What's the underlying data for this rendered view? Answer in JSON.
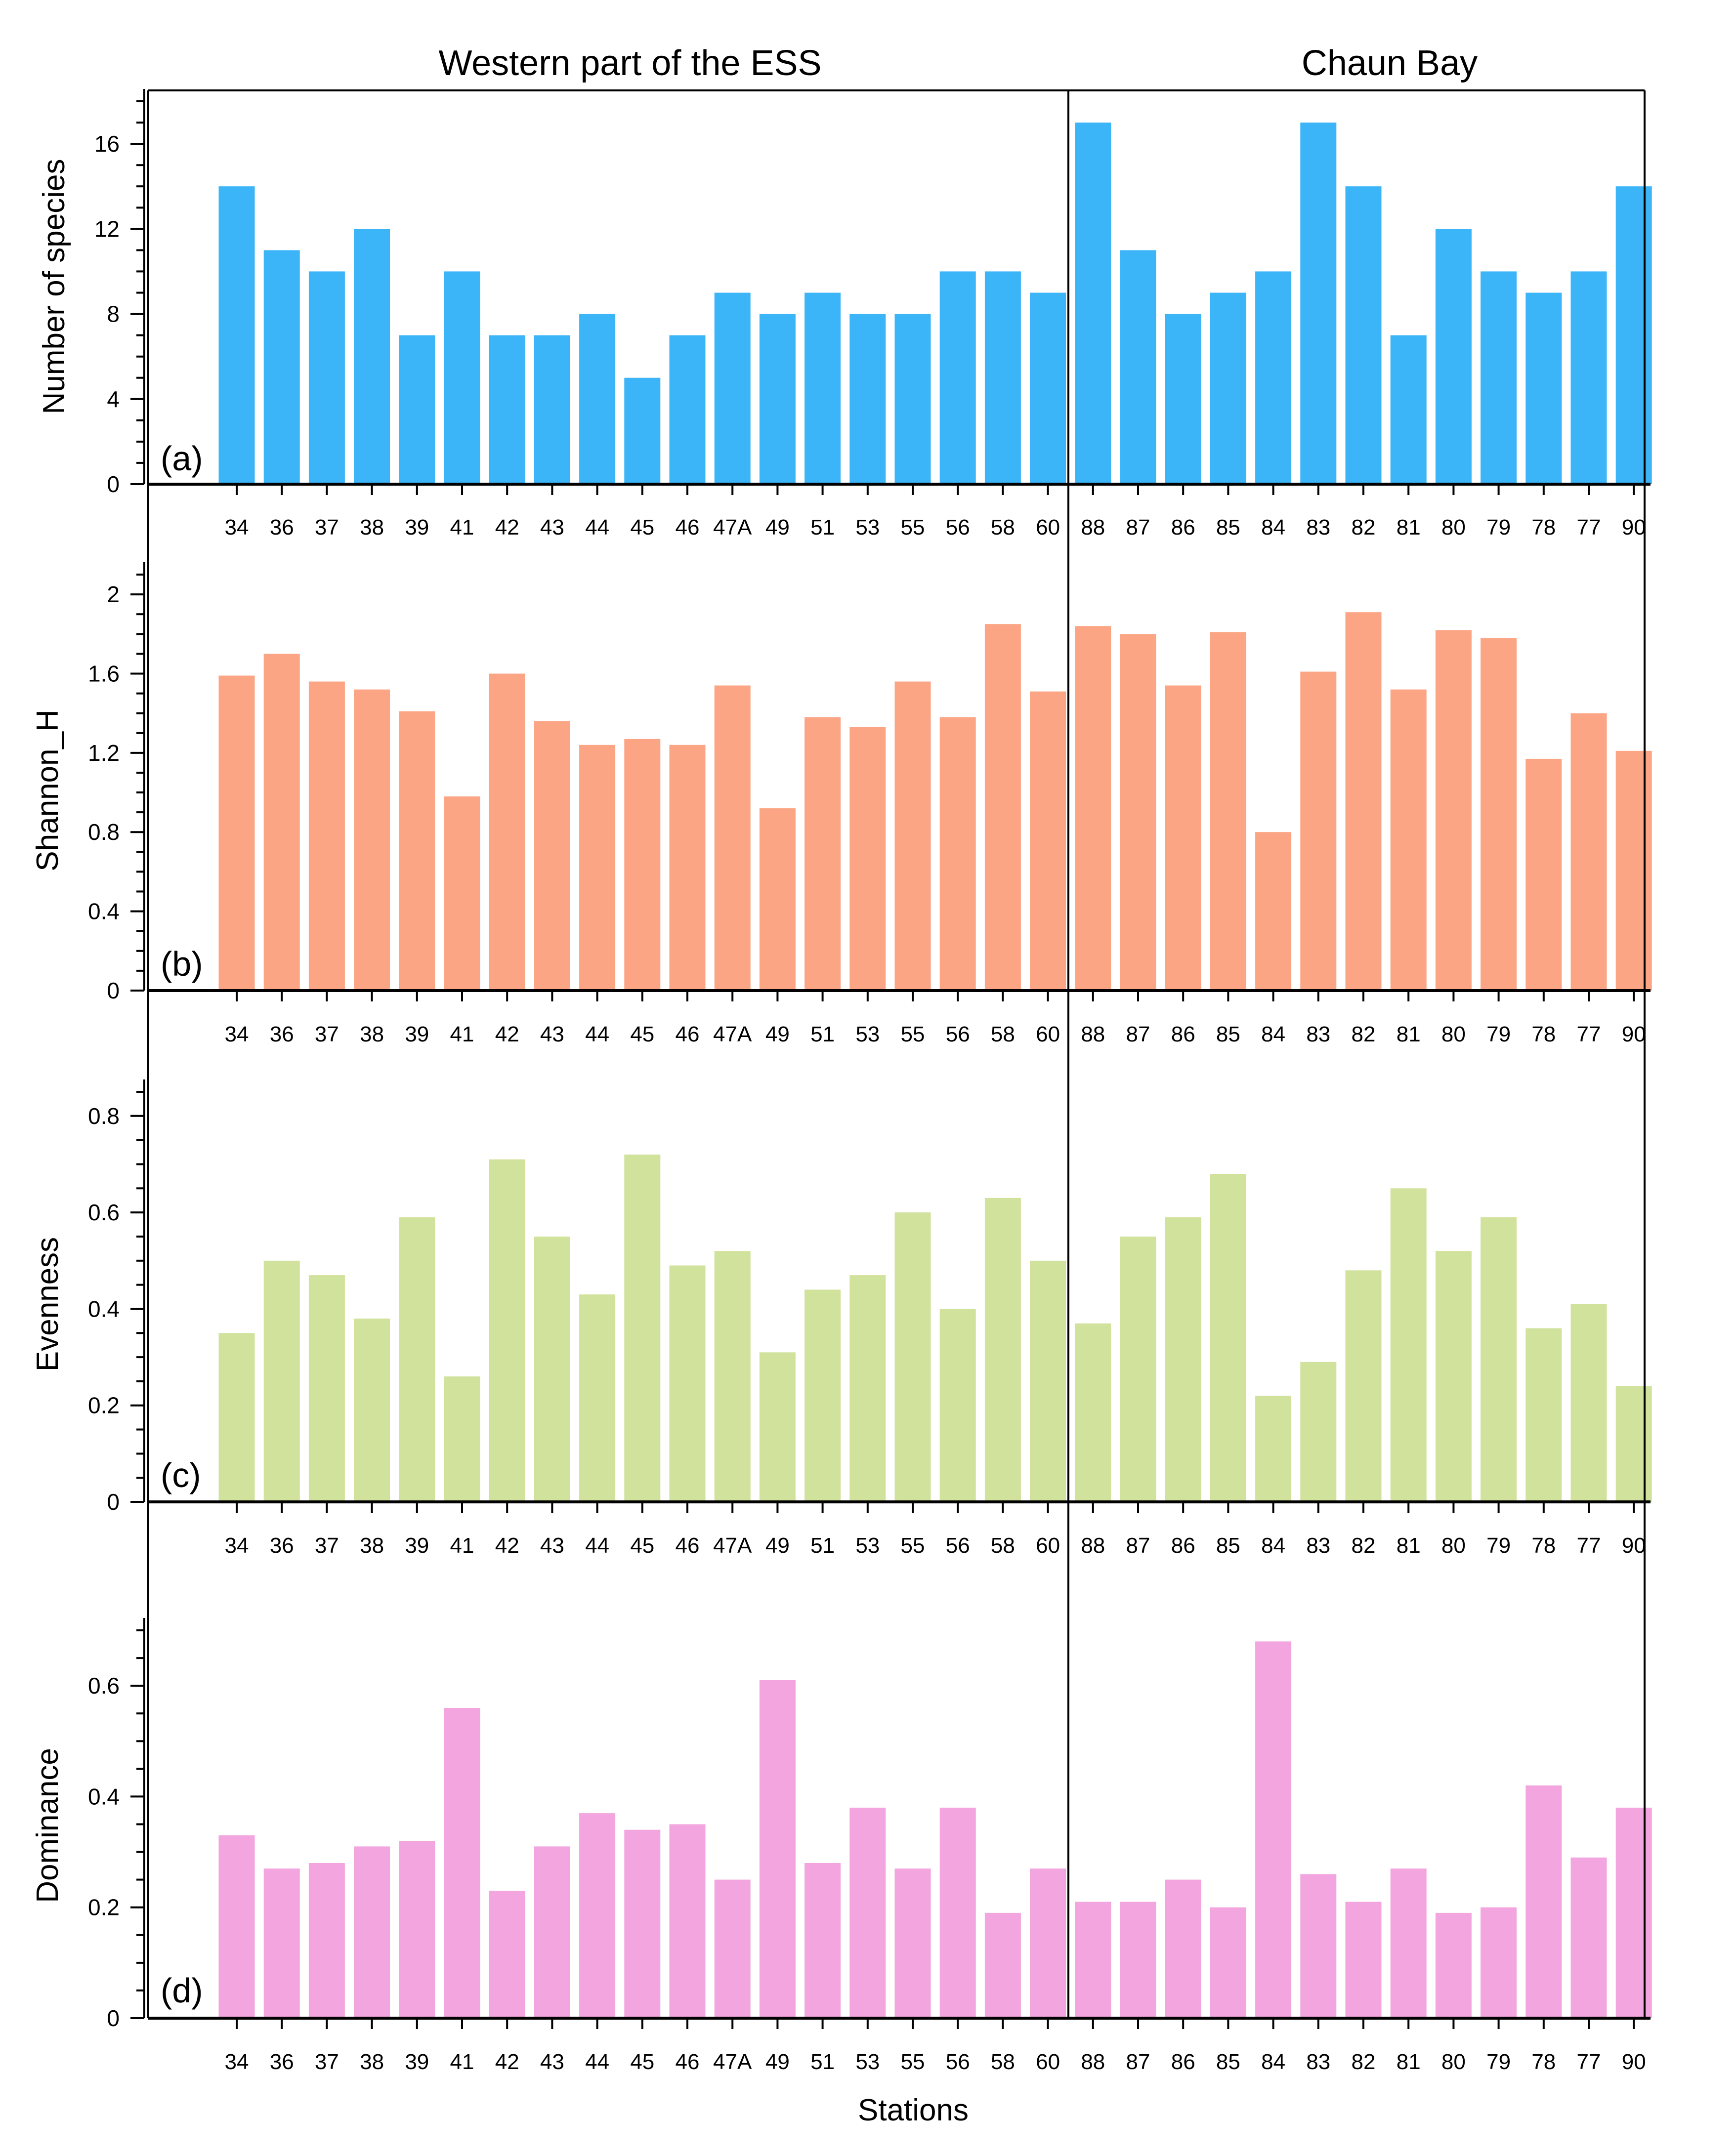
{
  "figure": {
    "regions": [
      "Western part of the ESS",
      "Chaun Bay"
    ],
    "xlabel": "Stations"
  },
  "chart_data": [
    {
      "type": "bar",
      "panel_label": "(a)",
      "ylabel": "Number of species",
      "ylim": [
        0,
        18
      ],
      "yticks": [
        0,
        4,
        8,
        12,
        16
      ],
      "ytick_labels": [
        "0",
        "4",
        "8",
        "12",
        "16"
      ],
      "color": "#3cb4f8",
      "categories": [
        "34",
        "36",
        "37",
        "38",
        "39",
        "41",
        "42",
        "43",
        "44",
        "45",
        "46",
        "47A",
        "49",
        "51",
        "53",
        "55",
        "56",
        "58",
        "60",
        "88",
        "87",
        "86",
        "85",
        "84",
        "83",
        "82",
        "81",
        "80",
        "79",
        "78",
        "77",
        "90"
      ],
      "values": [
        14,
        11,
        10,
        12,
        7,
        10,
        7,
        7,
        8,
        5,
        7,
        9,
        8,
        9,
        8,
        8,
        10,
        10,
        9,
        17,
        11,
        8,
        9,
        10,
        17,
        14,
        7,
        12,
        10,
        9,
        10,
        14
      ]
    },
    {
      "type": "bar",
      "panel_label": "(b)",
      "ylabel": "Shannon_H",
      "ylim": [
        0,
        2.1
      ],
      "yticks": [
        0,
        0.4,
        0.8,
        1.2,
        1.6,
        2
      ],
      "ytick_labels": [
        "0",
        "0.4",
        "0.8",
        "1.2",
        "1.6",
        "2"
      ],
      "color": "#fba584",
      "categories": [
        "34",
        "36",
        "37",
        "38",
        "39",
        "41",
        "42",
        "43",
        "44",
        "45",
        "46",
        "47A",
        "49",
        "51",
        "53",
        "55",
        "56",
        "58",
        "60",
        "88",
        "87",
        "86",
        "85",
        "84",
        "83",
        "82",
        "81",
        "80",
        "79",
        "78",
        "77",
        "90"
      ],
      "values": [
        1.59,
        1.7,
        1.56,
        1.52,
        1.41,
        0.98,
        1.6,
        1.36,
        1.24,
        1.27,
        1.24,
        1.54,
        0.92,
        1.38,
        1.33,
        1.56,
        1.38,
        1.85,
        1.51,
        1.84,
        1.8,
        1.54,
        1.81,
        0.8,
        1.61,
        1.91,
        1.52,
        1.82,
        1.78,
        1.17,
        1.4,
        1.21
      ]
    },
    {
      "type": "bar",
      "panel_label": "(c)",
      "ylabel": "Evenness",
      "ylim": [
        0,
        0.85
      ],
      "yticks": [
        0,
        0.2,
        0.4,
        0.6,
        0.8
      ],
      "ytick_labels": [
        "0",
        "0.2",
        "0.4",
        "0.6",
        "0.8"
      ],
      "color": "#d1e29c",
      "categories": [
        "34",
        "36",
        "37",
        "38",
        "39",
        "41",
        "42",
        "43",
        "44",
        "45",
        "46",
        "47A",
        "49",
        "51",
        "53",
        "55",
        "56",
        "58",
        "60",
        "88",
        "87",
        "86",
        "85",
        "84",
        "83",
        "82",
        "81",
        "80",
        "79",
        "78",
        "77",
        "90"
      ],
      "values": [
        0.35,
        0.5,
        0.47,
        0.38,
        0.59,
        0.26,
        0.71,
        0.55,
        0.43,
        0.72,
        0.49,
        0.52,
        0.31,
        0.44,
        0.47,
        0.6,
        0.4,
        0.63,
        0.5,
        0.37,
        0.55,
        0.59,
        0.68,
        0.22,
        0.29,
        0.48,
        0.65,
        0.52,
        0.59,
        0.36,
        0.41,
        0.24
      ]
    },
    {
      "type": "bar",
      "panel_label": "(d)",
      "ylabel": "Dominance",
      "ylim": [
        0,
        0.7
      ],
      "yticks": [
        0,
        0.2,
        0.4,
        0.6
      ],
      "ytick_labels": [
        "0",
        "0.2",
        "0.4",
        "0.6"
      ],
      "color": "#f2a5de",
      "categories": [
        "34",
        "36",
        "37",
        "38",
        "39",
        "41",
        "42",
        "43",
        "44",
        "45",
        "46",
        "47A",
        "49",
        "51",
        "53",
        "55",
        "56",
        "58",
        "60",
        "88",
        "87",
        "86",
        "85",
        "84",
        "83",
        "82",
        "81",
        "80",
        "79",
        "78",
        "77",
        "90"
      ],
      "values": [
        0.33,
        0.27,
        0.28,
        0.31,
        0.32,
        0.56,
        0.23,
        0.31,
        0.37,
        0.34,
        0.35,
        0.25,
        0.61,
        0.28,
        0.38,
        0.27,
        0.38,
        0.19,
        0.27,
        0.21,
        0.21,
        0.25,
        0.2,
        0.68,
        0.26,
        0.21,
        0.27,
        0.19,
        0.2,
        0.42,
        0.29,
        0.38
      ]
    }
  ]
}
